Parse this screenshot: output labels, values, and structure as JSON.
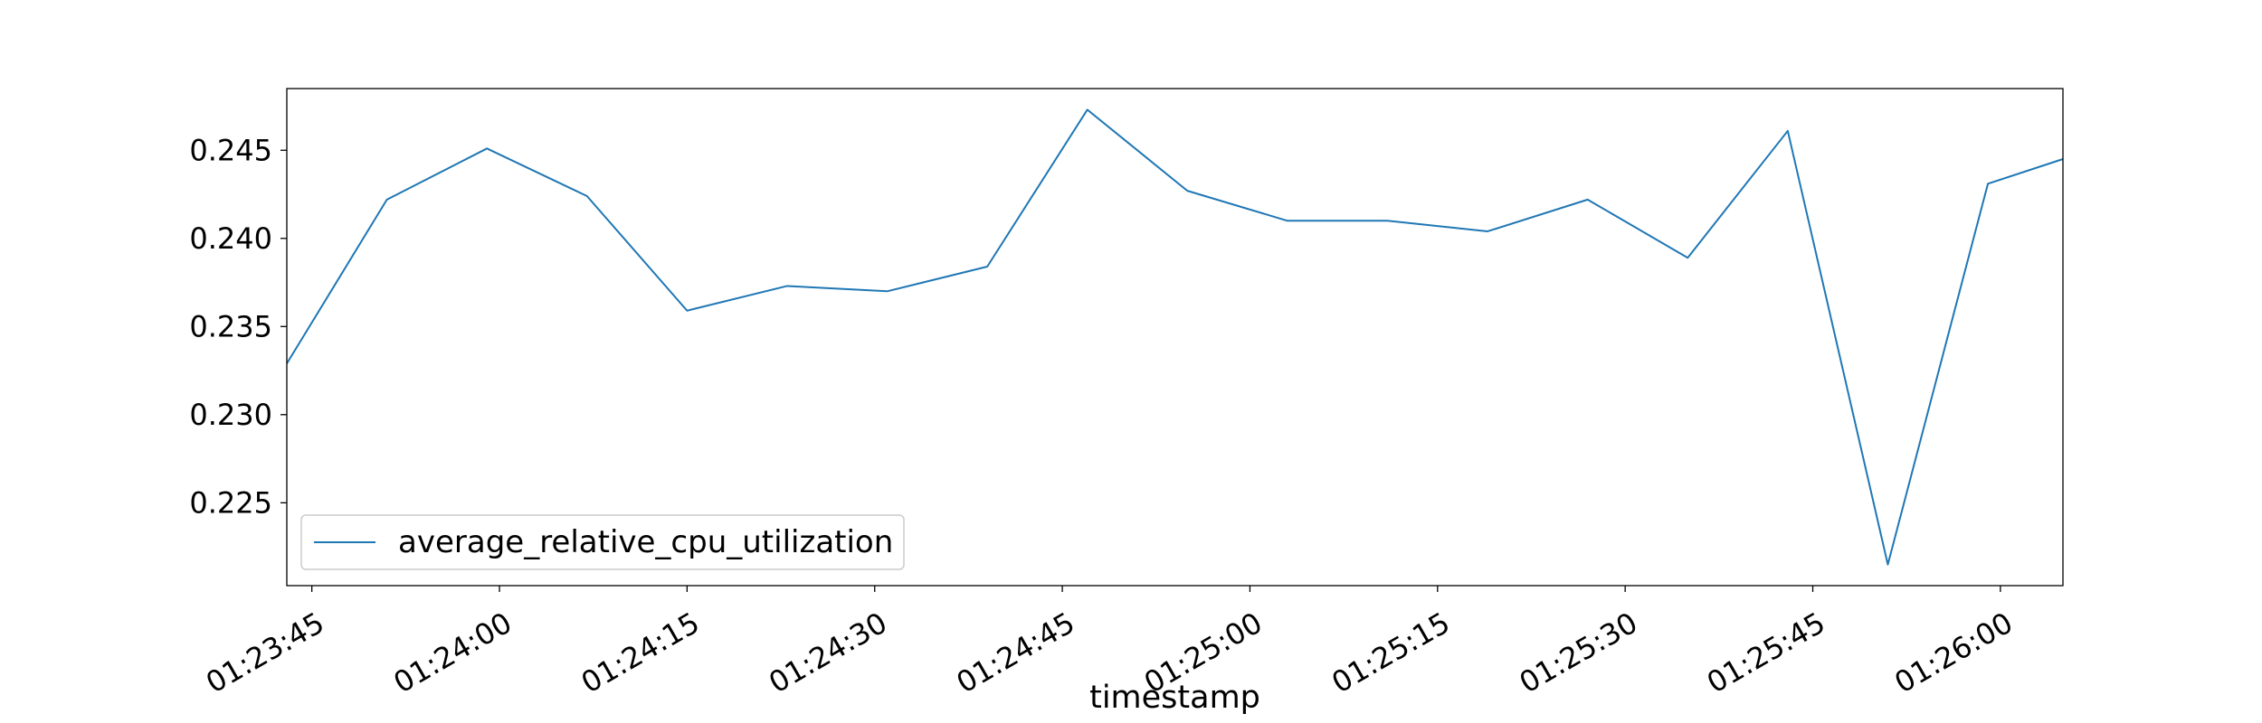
{
  "chart_data": {
    "type": "line",
    "xlabel": "timestamp",
    "ylabel": "",
    "title": "",
    "legend_position": "lower-left",
    "grid": false,
    "xlim": [
      "01:23:43",
      "01:26:05"
    ],
    "ylim": [
      0.2203,
      0.2485
    ],
    "x_ticks": [
      "01:23:45",
      "01:24:00",
      "01:24:15",
      "01:24:30",
      "01:24:45",
      "01:25:00",
      "01:25:15",
      "01:25:30",
      "01:25:45",
      "01:26:00"
    ],
    "y_ticks": [
      0.225,
      0.23,
      0.235,
      0.24,
      0.245
    ],
    "y_tick_labels": [
      "0.225",
      "0.230",
      "0.235",
      "0.240",
      "0.245"
    ],
    "series": [
      {
        "name": "average_relative_cpu_utilization",
        "color": "#1f77b4",
        "x": [
          "01:23:43",
          "01:23:51",
          "01:23:59",
          "01:24:07",
          "01:24:15",
          "01:24:23",
          "01:24:31",
          "01:24:39",
          "01:24:47",
          "01:24:55",
          "01:25:03",
          "01:25:11",
          "01:25:19",
          "01:25:27",
          "01:25:35",
          "01:25:43",
          "01:25:51",
          "01:25:59",
          "01:26:05"
        ],
        "values": [
          0.2329,
          0.2422,
          0.2451,
          0.2424,
          0.2359,
          0.2373,
          0.237,
          0.2384,
          0.2473,
          0.2427,
          0.241,
          0.241,
          0.2404,
          0.2422,
          0.2389,
          0.2461,
          0.2215,
          0.2431,
          0.2445
        ]
      }
    ]
  }
}
